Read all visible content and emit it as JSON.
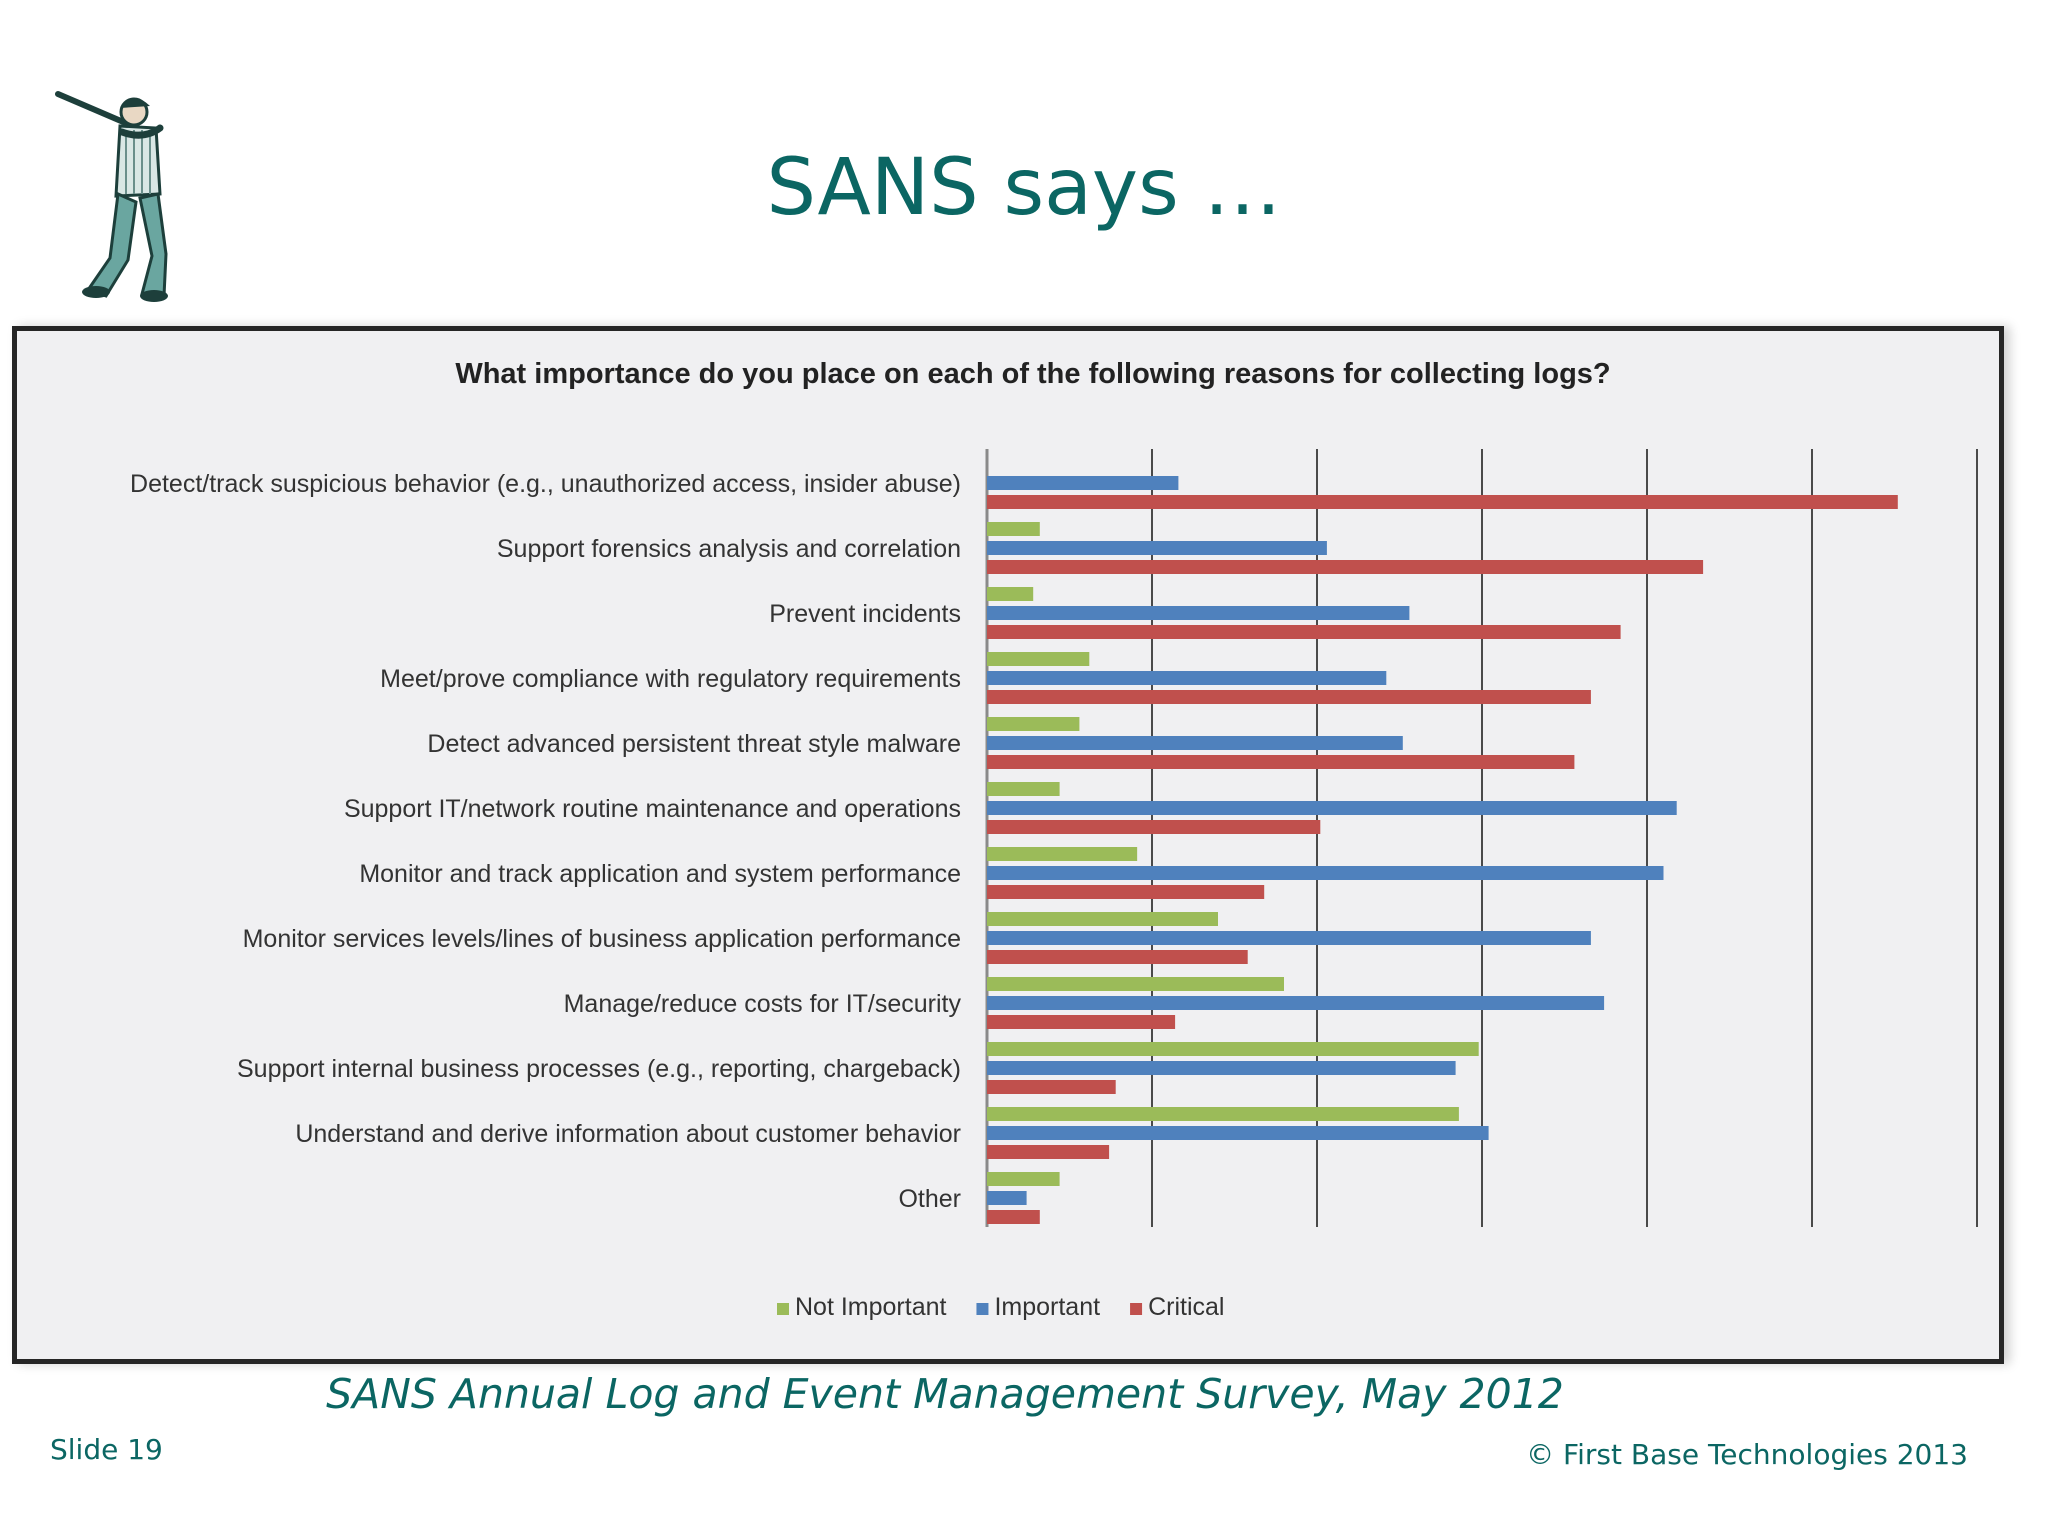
{
  "slide": {
    "title": "SANS says …",
    "caption": "SANS Annual Log and Event Management Survey, May 2012",
    "slide_number": "Slide 19",
    "copyright": "© First Base Technologies 2013",
    "logo_icon": "baseball-batter-icon"
  },
  "chart_data": {
    "type": "bar",
    "orientation": "horizontal",
    "title": "What importance do you place on each of the following reasons for collecting logs?",
    "xlabel": "",
    "ylabel": "",
    "xlim": [
      0,
      6
    ],
    "grid": true,
    "legend_position": "bottom",
    "categories": [
      "Detect/track suspicious behavior (e.g., unauthorized access, insider abuse)",
      "Support forensics analysis and correlation",
      "Prevent incidents",
      "Meet/prove compliance with regulatory requirements",
      "Detect advanced persistent threat style malware",
      "Support IT/network routine maintenance and operations",
      "Monitor and track application and system performance",
      "Monitor services levels/lines of business application performance",
      "Manage/reduce costs for IT/security",
      "Support internal business processes (e.g., reporting, chargeback)",
      "Understand and derive information about customer behavior",
      "Other"
    ],
    "series": [
      {
        "name": "Not Important",
        "color": "#9bbb59",
        "values": [
          0,
          0.32,
          0.28,
          0.62,
          0.56,
          0.44,
          0.91,
          1.4,
          1.8,
          2.98,
          2.86,
          0.44
        ]
      },
      {
        "name": "Important",
        "color": "#4f81bd",
        "values": [
          1.16,
          2.06,
          2.56,
          2.42,
          2.52,
          4.18,
          4.1,
          3.66,
          3.74,
          2.84,
          3.04,
          0.24
        ]
      },
      {
        "name": "Critical",
        "color": "#c0504d",
        "values": [
          5.52,
          4.34,
          3.84,
          3.66,
          3.56,
          2.02,
          1.68,
          1.58,
          1.14,
          0.78,
          0.74,
          0.32
        ]
      }
    ]
  }
}
